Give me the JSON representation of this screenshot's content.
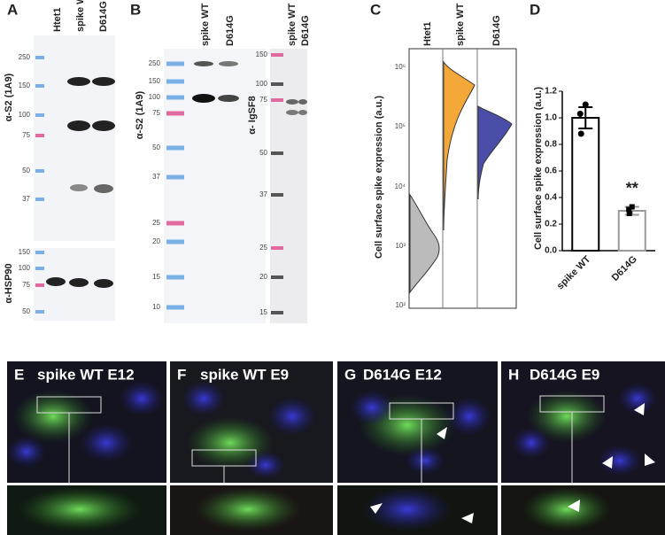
{
  "panels": {
    "a": {
      "label": "A",
      "lanes": [
        "Htet1",
        "spike WT",
        "D614G"
      ],
      "upper_markers": [
        "250",
        "150",
        "100",
        "75",
        "50",
        "37"
      ],
      "upper_antibody": "α-S2 (1A9)",
      "lower_markers": [
        "150",
        "100",
        "75",
        "50"
      ],
      "lower_antibody": "α-HSP90"
    },
    "b": {
      "label": "B",
      "lanes": [
        "spike WT",
        "D614G"
      ],
      "markers": [
        "250",
        "150",
        "100",
        "75",
        "50",
        "37",
        "25",
        "20",
        "15",
        "10"
      ],
      "antibody": "α-S2 (1A9)",
      "right_lanes": [
        "spike WT",
        "D614G"
      ],
      "right_markers": [
        "150",
        "100",
        "75",
        "50",
        "37",
        "25",
        "20",
        "15"
      ],
      "right_antibody": "α- IgSF8"
    },
    "c": {
      "label": "C",
      "lanes": [
        "Htet1",
        "spike WT",
        "D614G"
      ],
      "axis_label": "Cell surface spike expression (a.u.)",
      "ticks": [
        "10⁶",
        "10⁵",
        "10⁴",
        "10³",
        "10²"
      ]
    },
    "e": {
      "label": "E",
      "title": "spike WT E12"
    },
    "f": {
      "label": "F",
      "title": "spike WT E9"
    },
    "g": {
      "label": "G",
      "title": "D614G E12"
    },
    "h": {
      "label": "H",
      "title": "D614G E9"
    }
  },
  "chart_data": {
    "type": "bar",
    "panel_label": "D",
    "ylabel": "Cell surface spike expression (a.u.)",
    "categories": [
      "spike WT",
      "D614G"
    ],
    "values": [
      1.0,
      0.3
    ],
    "errors": [
      0.08,
      0.03
    ],
    "points": [
      [
        1.1,
        1.03,
        0.88
      ],
      [
        0.33,
        0.31,
        0.28
      ]
    ],
    "colors": [
      "#000000",
      "#999999"
    ],
    "annotation": "**",
    "ylim": [
      0,
      1.2
    ],
    "yticks": [
      {
        "value": 0,
        "label": "0.0"
      },
      0.2,
      0.4,
      0.6,
      0.8,
      {
        "value": 1,
        "label": "1.0"
      },
      1.2
    ]
  }
}
